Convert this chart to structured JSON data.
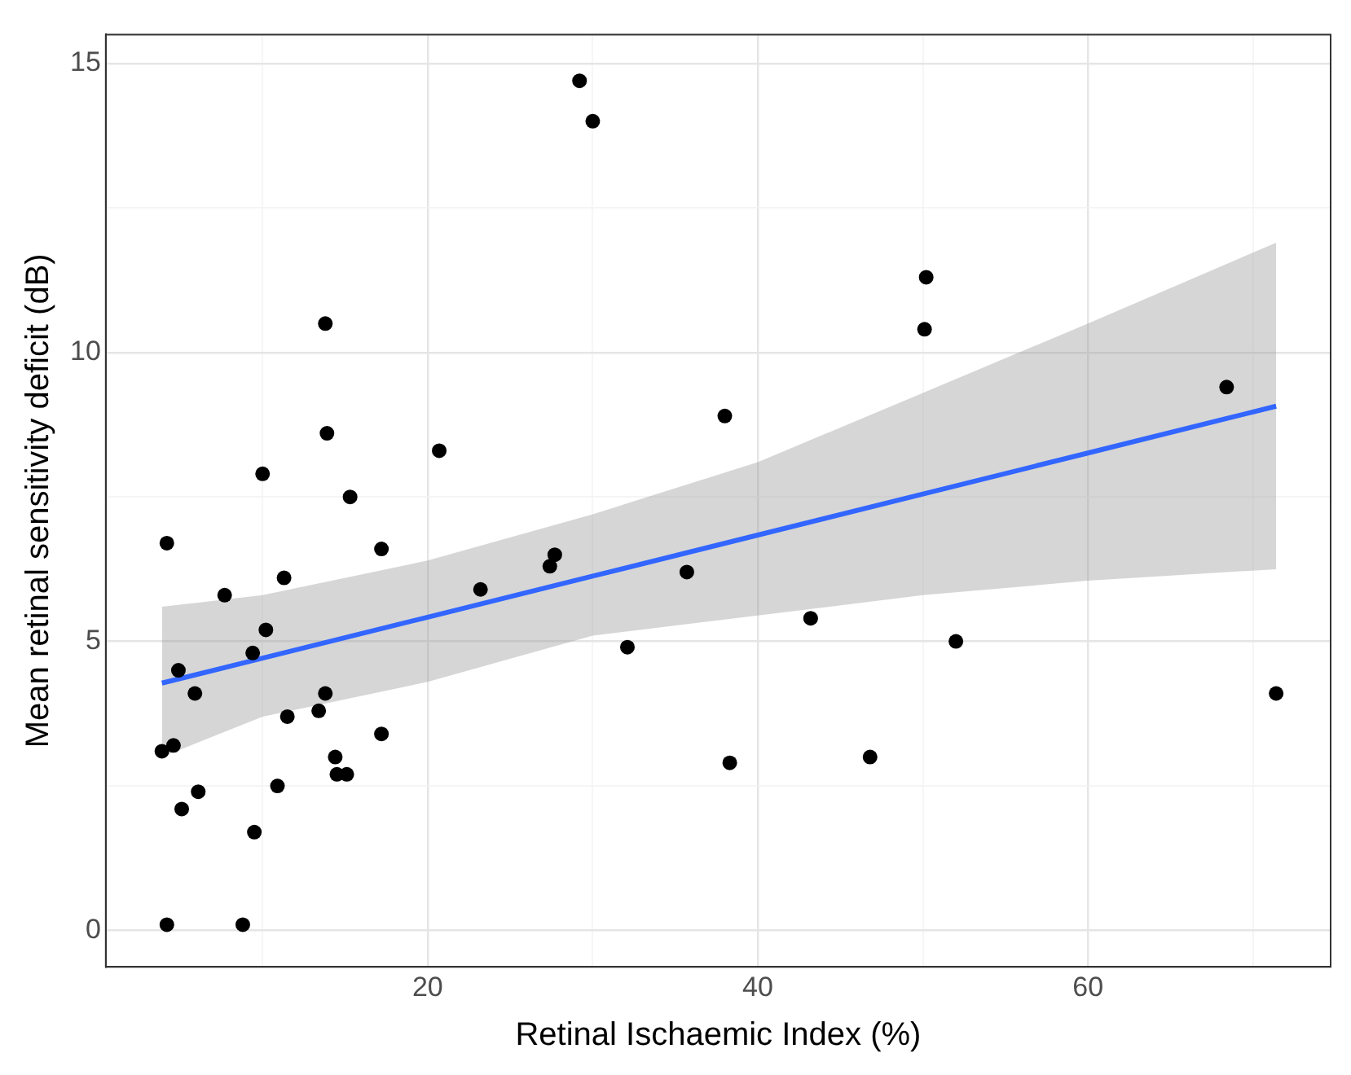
{
  "chart_data": {
    "type": "scatter",
    "xlabel": "Retinal Ischaemic Index (%)",
    "ylabel": "Mean retinal sensitivity deficit (dB)",
    "xlim": [
      0.5,
      74.7
    ],
    "ylim": [
      -0.63,
      15.5
    ],
    "xticks": [
      {
        "value": 10,
        "label": null
      },
      20,
      {
        "value": 30,
        "label": null
      },
      40,
      {
        "value": 50,
        "label": null
      },
      60,
      {
        "value": 70,
        "label": null
      }
    ],
    "yticks": [
      0,
      {
        "value": 2.5,
        "label": null
      },
      5,
      {
        "value": 7.5,
        "label": null
      },
      10,
      {
        "value": 12.5,
        "label": null
      },
      15
    ],
    "grid": true,
    "legend": false,
    "marker": "circle",
    "series": [
      {
        "type": "scatter",
        "color": "#000000",
        "x": [
          4.2,
          10,
          13.8,
          13.9,
          15.3,
          11.3,
          7.7,
          17.2,
          20.7,
          23.2,
          27.4,
          27.7,
          29.2,
          30.0,
          32.1,
          35.7,
          38.0,
          38.3,
          43.2,
          46.8,
          50.1,
          50.2,
          52.0,
          68.4,
          71.4,
          10.2,
          9.4,
          4.9,
          5.9,
          3.9,
          4.6,
          6.1,
          5.1,
          10.9,
          9.5,
          11.5,
          13.4,
          13.8,
          14.4,
          14.5,
          15.1,
          17.2,
          4.2,
          8.8
        ],
        "values": [
          6.7,
          7.9,
          10.5,
          8.6,
          7.5,
          6.1,
          5.8,
          6.6,
          8.3,
          5.9,
          6.3,
          6.5,
          14.7,
          14.0,
          4.9,
          6.2,
          8.9,
          2.9,
          5.4,
          3.0,
          10.4,
          11.3,
          5.0,
          9.4,
          4.1,
          5.2,
          4.8,
          4.5,
          4.1,
          3.1,
          3.2,
          2.4,
          2.1,
          2.5,
          1.7,
          3.7,
          3.8,
          4.1,
          3.0,
          2.7,
          2.7,
          3.4,
          0.1,
          0.1
        ]
      },
      {
        "type": "line",
        "color": "#3366ff",
        "marker": "none",
        "x": [
          3.9,
          10,
          20,
          30,
          40,
          50,
          60,
          71.4
        ],
        "values": [
          4.28,
          4.71,
          5.42,
          6.13,
          6.84,
          7.55,
          8.26,
          9.07
        ],
        "lower": [
          3.0,
          3.7,
          4.3,
          5.1,
          5.45,
          5.8,
          6.05,
          6.25
        ],
        "upper": [
          5.6,
          5.8,
          6.4,
          7.2,
          8.1,
          9.3,
          10.5,
          11.9
        ]
      }
    ]
  }
}
